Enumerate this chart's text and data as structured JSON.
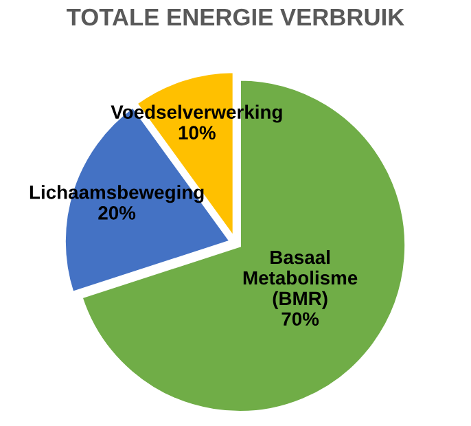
{
  "chart_data": {
    "type": "pie",
    "title": "TOTALE ENERGIE VERBRUIK",
    "categories": [
      "Basaal\nMetabolisme\n(BMR)",
      "Lichaamsbeweging",
      "Voedselverwerking"
    ],
    "values": [
      70,
      20,
      10
    ],
    "value_labels": [
      "70%",
      "20%",
      "10%"
    ],
    "colors": [
      "#70ad47",
      "#4472c4",
      "#ffc000"
    ]
  }
}
